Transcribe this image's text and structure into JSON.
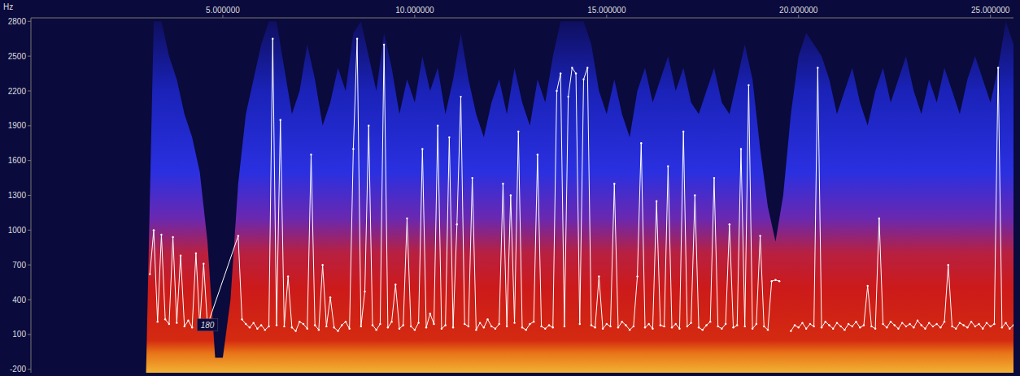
{
  "chart_data": {
    "type": "line",
    "y_label": "Hz",
    "x": [
      3.1,
      3.2,
      3.3,
      3.4,
      3.5,
      3.6,
      3.7,
      3.8,
      3.9,
      4.0,
      4.1,
      4.2,
      4.3,
      4.4,
      4.5,
      4.6,
      5.4,
      5.5,
      5.6,
      5.7,
      5.8,
      5.9,
      6.0,
      6.1,
      6.2,
      6.3,
      6.4,
      6.5,
      6.6,
      6.7,
      6.8,
      6.9,
      7.0,
      7.1,
      7.2,
      7.3,
      7.4,
      7.5,
      7.6,
      7.7,
      7.8,
      7.9,
      8.0,
      8.1,
      8.2,
      8.3,
      8.4,
      8.5,
      8.6,
      8.7,
      8.8,
      8.9,
      9.0,
      9.1,
      9.2,
      9.3,
      9.4,
      9.5,
      9.6,
      9.7,
      9.8,
      9.9,
      10.0,
      10.1,
      10.2,
      10.3,
      10.4,
      10.5,
      10.6,
      10.7,
      10.8,
      10.9,
      11.0,
      11.1,
      11.2,
      11.3,
      11.4,
      11.5,
      11.6,
      11.7,
      11.8,
      11.9,
      12.0,
      12.1,
      12.2,
      12.3,
      12.4,
      12.5,
      12.6,
      12.7,
      12.8,
      12.9,
      13.0,
      13.1,
      13.2,
      13.3,
      13.4,
      13.5,
      13.6,
      13.7,
      13.8,
      13.9,
      14.0,
      14.1,
      14.2,
      14.3,
      14.4,
      14.5,
      14.6,
      14.7,
      14.8,
      14.9,
      15.0,
      15.1,
      15.2,
      15.3,
      15.4,
      15.5,
      15.6,
      15.7,
      15.8,
      15.9,
      16.0,
      16.1,
      16.2,
      16.3,
      16.4,
      16.5,
      16.6,
      16.7,
      16.8,
      16.9,
      17.0,
      17.1,
      17.2,
      17.3,
      17.4,
      17.5,
      17.6,
      17.7,
      17.8,
      17.9,
      18.0,
      18.1,
      18.2,
      18.3,
      18.4,
      18.5,
      18.6,
      18.7,
      18.8,
      18.9,
      19.0,
      19.1,
      19.2,
      19.3,
      19.4,
      19.5,
      19.6,
      19.7,
      19.8,
      19.9,
      20.0,
      20.1,
      20.2,
      20.3,
      20.4,
      20.5,
      20.6,
      20.7,
      20.8,
      20.9,
      21.0,
      21.1,
      21.2,
      21.3,
      21.4,
      21.5,
      21.6,
      21.7,
      21.8,
      21.9,
      22.0,
      22.1,
      22.2,
      22.3,
      22.4,
      22.5,
      22.6,
      22.7,
      22.8,
      22.9,
      23.0,
      23.1,
      23.2,
      23.3,
      23.4,
      23.5,
      23.6,
      23.7,
      23.8,
      23.9,
      24.0,
      24.1,
      24.2,
      24.3,
      24.4,
      24.5,
      24.6,
      24.7,
      24.8,
      24.9,
      25.0,
      25.1,
      25.2,
      25.3,
      25.4,
      25.5,
      25.6
    ],
    "values": [
      620,
      1000,
      210,
      960,
      230,
      190,
      940,
      200,
      780,
      170,
      220,
      160,
      800,
      180,
      710,
      180,
      950,
      230,
      190,
      160,
      200,
      150,
      180,
      140,
      170,
      2650,
      180,
      1950,
      170,
      600,
      160,
      130,
      210,
      190,
      150,
      1650,
      180,
      140,
      700,
      170,
      420,
      160,
      130,
      180,
      210,
      150,
      1700,
      2650,
      170,
      470,
      1900,
      180,
      140,
      190,
      2600,
      160,
      210,
      530,
      150,
      180,
      1100,
      170,
      140,
      200,
      1700,
      160,
      280,
      190,
      1900,
      150,
      180,
      1800,
      160,
      1050,
      2150,
      190,
      170,
      1450,
      140,
      200,
      160,
      230,
      170,
      150,
      190,
      1400,
      170,
      1300,
      200,
      1850,
      160,
      140,
      190,
      210,
      1650,
      170,
      150,
      180,
      160,
      2200,
      2350,
      170,
      2150,
      2400,
      2350,
      190,
      2300,
      2400,
      180,
      160,
      600,
      150,
      190,
      170,
      1400,
      160,
      210,
      180,
      140,
      170,
      600,
      1750,
      160,
      190,
      150,
      1250,
      180,
      170,
      1550,
      160,
      190,
      150,
      1850,
      170,
      200,
      1300,
      160,
      140,
      180,
      210,
      1450,
      170,
      150,
      190,
      1050,
      160,
      180,
      1700,
      170,
      2250,
      150,
      190,
      950,
      170,
      140,
      560,
      570,
      560,
      null,
      null,
      130,
      180,
      160,
      200,
      150,
      190,
      170,
      2400,
      160,
      210,
      180,
      150,
      200,
      170,
      140,
      190,
      170,
      210,
      160,
      180,
      520,
      170,
      150,
      1100,
      190,
      160,
      210,
      180,
      150,
      200,
      170,
      190,
      160,
      220,
      180,
      150,
      200,
      170,
      190,
      160,
      210,
      700,
      170,
      150,
      200,
      180,
      160,
      210,
      170,
      190,
      150,
      200,
      170,
      190,
      2400,
      160,
      200,
      150,
      180
    ],
    "color": "#ffffff",
    "spectrogram": {
      "x": [
        0,
        0.2,
        0.4,
        0.6,
        0.8,
        1,
        1.2,
        1.4,
        1.6,
        1.8,
        2,
        2.2,
        2.4,
        2.6,
        2.8,
        3,
        3.2,
        3.4,
        3.6,
        3.8,
        4,
        4.2,
        4.4,
        4.6,
        4.8,
        5,
        5.2,
        5.4,
        5.6,
        5.8,
        6,
        6.2,
        6.4,
        6.6,
        6.8,
        7,
        7.2,
        7.4,
        7.6,
        7.8,
        8,
        8.2,
        8.4,
        8.6,
        8.8,
        9,
        9.2,
        9.4,
        9.6,
        9.8,
        10,
        10.2,
        10.4,
        10.6,
        10.8,
        11,
        11.2,
        11.4,
        11.6,
        11.8,
        12,
        12.2,
        12.4,
        12.6,
        12.8,
        13,
        13.2,
        13.4,
        13.6,
        13.8,
        14,
        14.2,
        14.4,
        14.6,
        14.8,
        15,
        15.2,
        15.4,
        15.6,
        15.8,
        16,
        16.2,
        16.4,
        16.6,
        16.8,
        17,
        17.2,
        17.4,
        17.6,
        17.8,
        18,
        18.2,
        18.4,
        18.6,
        18.8,
        19,
        19.2,
        19.4,
        19.6,
        19.8,
        20,
        20.2,
        20.4,
        20.6,
        20.8,
        21,
        21.2,
        21.4,
        21.6,
        21.8,
        22,
        22.2,
        22.4,
        22.6,
        22.8,
        23,
        23.2,
        23.4,
        23.6,
        23.8,
        24,
        24.2,
        24.4,
        24.6,
        24.8,
        25,
        25.2,
        25.4,
        25.6
      ],
      "values": [
        -230,
        -230,
        -230,
        -230,
        -230,
        -230,
        -230,
        -230,
        -230,
        -230,
        -230,
        -230,
        -230,
        -230,
        -230,
        -230,
        2800,
        2800,
        2500,
        2300,
        2000,
        1800,
        1500,
        900,
        -100,
        -100,
        400,
        1400,
        2000,
        2300,
        2600,
        2800,
        2800,
        2400,
        2000,
        2200,
        2600,
        2300,
        1900,
        2100,
        2400,
        2200,
        2700,
        2800,
        2500,
        2200,
        2700,
        2400,
        2000,
        2300,
        2100,
        2500,
        2200,
        2400,
        2000,
        2300,
        2700,
        2300,
        2000,
        1800,
        2100,
        2300,
        2000,
        2400,
        2100,
        1900,
        2300,
        2100,
        2500,
        2800,
        2800,
        2800,
        2800,
        2600,
        2200,
        2000,
        2300,
        2000,
        1800,
        2200,
        2400,
        2100,
        2300,
        2500,
        2200,
        2400,
        2100,
        2000,
        2200,
        2400,
        2100,
        2000,
        2300,
        2600,
        2300,
        1700,
        1200,
        900,
        1300,
        2000,
        2500,
        2700,
        2600,
        2500,
        2300,
        2000,
        2200,
        2400,
        2100,
        1900,
        2200,
        2400,
        2100,
        2300,
        2500,
        2200,
        2000,
        2300,
        2100,
        2400,
        2200,
        2000,
        2300,
        2500,
        2300,
        2100,
        2400,
        2800,
        2600
      ]
    },
    "annotations": [
      {
        "x": 4.6,
        "y": 180,
        "text": "180"
      }
    ],
    "xlim": [
      0,
      25.6
    ],
    "xticks": [
      {
        "value": 5,
        "label": "5.000000"
      },
      {
        "value": 10,
        "label": "10.000000"
      },
      {
        "value": 15,
        "label": "15.000000"
      },
      {
        "value": 20,
        "label": "20.000000"
      },
      {
        "value": 25,
        "label": "25.000000"
      }
    ],
    "ylim": [
      -230,
      2830
    ],
    "yticks": [
      -200,
      100,
      400,
      700,
      1000,
      1300,
      1600,
      1900,
      2200,
      2500,
      2800
    ]
  }
}
